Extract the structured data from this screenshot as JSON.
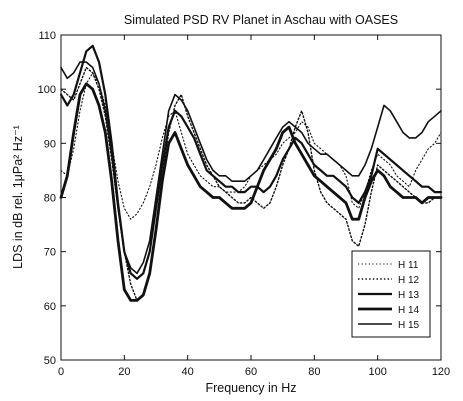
{
  "chart_data": {
    "type": "line",
    "title": "Simulated PSD RV Planet in Aschau    with OASES",
    "xlabel": "Frequency in Hz",
    "ylabel": "LDS in dB rel. 1μPa² Hz⁻¹",
    "xlim": [
      0,
      120
    ],
    "ylim": [
      50,
      110
    ],
    "xticks": [
      0,
      20,
      40,
      60,
      80,
      100,
      120
    ],
    "yticks": [
      50,
      60,
      70,
      80,
      90,
      100,
      110
    ],
    "grid": false,
    "legend_position": "bottom-right",
    "series": [
      {
        "name": "H 11",
        "style": "dotted-thin",
        "x": [
          0,
          2,
          4,
          6,
          8,
          10,
          12,
          14,
          16,
          18,
          20,
          22,
          24,
          26,
          28,
          30,
          32,
          34,
          36,
          38,
          40,
          42,
          44,
          46,
          48,
          50,
          52,
          54,
          56,
          58,
          60,
          62,
          64,
          66,
          68,
          70,
          72,
          74,
          76,
          78,
          80,
          82,
          84,
          86,
          88,
          90,
          92,
          94,
          96,
          98,
          100,
          102,
          104,
          106,
          108,
          110,
          112,
          114,
          116,
          118,
          120
        ],
        "y": [
          85,
          84,
          89,
          96,
          101,
          103,
          101,
          97,
          90,
          83,
          78,
          76,
          77,
          79,
          82,
          86,
          91,
          95,
          96,
          92,
          88,
          86,
          84,
          83,
          82,
          82,
          81,
          81,
          81,
          82,
          84,
          85,
          86,
          87,
          88,
          90,
          91,
          92,
          94,
          93,
          90,
          89,
          88,
          87,
          86,
          84,
          79,
          78,
          81,
          85,
          88,
          87,
          86,
          84,
          83,
          82,
          85,
          87,
          89,
          90,
          92
        ]
      },
      {
        "name": "H 12",
        "style": "dotted",
        "x": [
          0,
          2,
          4,
          6,
          8,
          10,
          12,
          14,
          16,
          18,
          20,
          22,
          24,
          26,
          28,
          30,
          32,
          34,
          36,
          38,
          40,
          42,
          44,
          46,
          48,
          50,
          52,
          54,
          56,
          58,
          60,
          62,
          64,
          66,
          68,
          70,
          72,
          74,
          76,
          78,
          80,
          82,
          84,
          86,
          88,
          90,
          92,
          94,
          96,
          98,
          100,
          102,
          104,
          106,
          108,
          110,
          112,
          114,
          116,
          118,
          120
        ],
        "y": [
          100,
          99,
          98,
          101,
          104,
          103,
          100,
          95,
          87,
          78,
          70,
          64,
          61,
          62,
          66,
          74,
          84,
          92,
          97,
          99,
          95,
          92,
          89,
          86,
          84,
          82,
          81,
          80,
          79,
          79,
          80,
          79,
          78,
          79,
          82,
          86,
          89,
          93,
          96,
          92,
          85,
          81,
          79,
          78,
          77,
          76,
          72,
          71,
          75,
          81,
          86,
          85,
          84,
          83,
          82,
          81,
          80,
          79,
          79,
          80,
          80
        ]
      },
      {
        "name": "H 13",
        "style": "solid-thick",
        "x": [
          0,
          2,
          4,
          6,
          8,
          10,
          12,
          14,
          16,
          18,
          20,
          22,
          24,
          26,
          28,
          30,
          32,
          34,
          36,
          38,
          40,
          42,
          44,
          46,
          48,
          50,
          52,
          54,
          56,
          58,
          60,
          62,
          64,
          66,
          68,
          70,
          72,
          74,
          76,
          78,
          80,
          82,
          84,
          86,
          88,
          90,
          92,
          94,
          96,
          98,
          100,
          102,
          104,
          106,
          108,
          110,
          112,
          114,
          116,
          118,
          120
        ],
        "y": [
          99,
          97,
          99,
          103,
          107,
          108,
          105,
          99,
          90,
          79,
          70,
          66,
          65,
          66,
          70,
          78,
          86,
          93,
          96,
          95,
          93,
          91,
          88,
          85,
          84,
          83,
          82,
          82,
          81,
          81,
          82,
          82,
          81,
          82,
          84,
          87,
          89,
          91,
          90,
          88,
          86,
          85,
          84,
          84,
          83,
          82,
          80,
          79,
          81,
          84,
          89,
          88,
          87,
          86,
          85,
          84,
          83,
          82,
          82,
          81,
          81
        ]
      },
      {
        "name": "H 14",
        "style": "solid-heavy",
        "x": [
          0,
          2,
          4,
          6,
          8,
          10,
          12,
          14,
          16,
          18,
          20,
          22,
          24,
          26,
          28,
          30,
          32,
          34,
          36,
          38,
          40,
          42,
          44,
          46,
          48,
          50,
          52,
          54,
          56,
          58,
          60,
          62,
          64,
          66,
          68,
          70,
          72,
          74,
          76,
          78,
          80,
          82,
          84,
          86,
          88,
          90,
          92,
          94,
          96,
          98,
          100,
          102,
          104,
          106,
          108,
          110,
          112,
          114,
          116,
          118,
          120
        ],
        "y": [
          80,
          84,
          92,
          99,
          101,
          100,
          97,
          92,
          83,
          72,
          63,
          61,
          61,
          62,
          66,
          74,
          83,
          90,
          92,
          89,
          86,
          84,
          82,
          81,
          80,
          80,
          79,
          78,
          78,
          78,
          79,
          82,
          85,
          87,
          89,
          92,
          93,
          90,
          88,
          86,
          84,
          83,
          82,
          81,
          80,
          79,
          76,
          76,
          80,
          83,
          85,
          84,
          82,
          81,
          80,
          80,
          80,
          79,
          80,
          80,
          80
        ]
      },
      {
        "name": "H 15",
        "style": "solid",
        "x": [
          0,
          2,
          4,
          6,
          8,
          10,
          12,
          14,
          16,
          18,
          20,
          22,
          24,
          26,
          28,
          30,
          32,
          34,
          36,
          38,
          40,
          42,
          44,
          46,
          48,
          50,
          52,
          54,
          56,
          58,
          60,
          62,
          64,
          66,
          68,
          70,
          72,
          74,
          76,
          78,
          80,
          82,
          84,
          86,
          88,
          90,
          92,
          94,
          96,
          98,
          100,
          102,
          104,
          106,
          108,
          110,
          112,
          114,
          116,
          118,
          120
        ],
        "y": [
          104,
          102,
          103,
          105,
          105,
          104,
          101,
          96,
          88,
          78,
          70,
          67,
          66,
          68,
          72,
          80,
          88,
          96,
          99,
          98,
          96,
          93,
          90,
          87,
          85,
          84,
          84,
          83,
          83,
          83,
          84,
          85,
          87,
          89,
          91,
          93,
          94,
          93,
          92,
          90,
          89,
          88,
          88,
          87,
          86,
          85,
          84,
          84,
          86,
          89,
          93,
          97,
          96,
          94,
          92,
          91,
          91,
          92,
          94,
          95,
          96
        ]
      }
    ]
  }
}
